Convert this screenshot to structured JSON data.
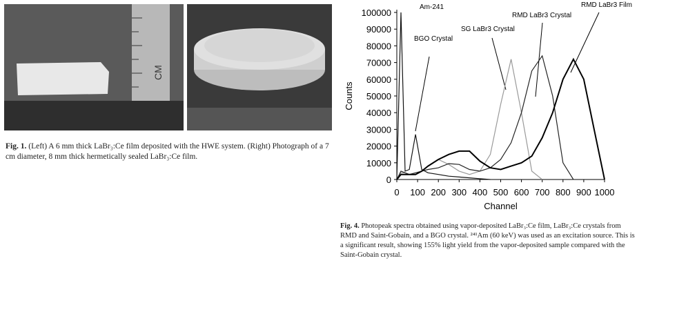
{
  "figure1": {
    "label": "Fig. 1.",
    "caption": "(Left) A 6 mm thick LaBr₃:Ce film deposited with the HWE system. (Right) Photograph of a 7 cm diameter, 8 mm thick hermetically sealed LaBr₃:Ce film."
  },
  "figure4": {
    "label": "Fig. 4.",
    "caption": "Photopeak spectra obtained using vapor-deposited LaBr₃:Ce film, LaBr₃:Ce crystals from RMD and Saint-Gobain, and a BGO crystal. ²⁴¹Am (60 keV) was used as an excitation source. This is a significant result, showing 155% light yield from the vapor-deposited sample compared with the Saint-Gobain crystal."
  },
  "chart_data": {
    "type": "line",
    "x_label": "Channel",
    "y_label": "Counts",
    "annotation": "Am-241",
    "x": [
      0,
      20,
      40,
      60,
      90,
      120,
      150,
      200,
      250,
      300,
      350,
      400,
      450,
      500,
      550,
      600,
      650,
      700,
      750,
      800,
      850,
      900,
      950,
      1000
    ],
    "series": [
      {
        "name": "BGO Crystal",
        "color": "#111111",
        "values": [
          0,
          100000,
          5000,
          6000,
          27000,
          6000,
          4000,
          3000,
          2000,
          1500,
          1000,
          500,
          0,
          null,
          null,
          null,
          null,
          null,
          null,
          null,
          null,
          null,
          null,
          null
        ]
      },
      {
        "name": "SG LaBr3 Crystal",
        "color": "#999999",
        "values": [
          0,
          4000,
          4000,
          3000,
          3000,
          5000,
          8000,
          12000,
          9000,
          5000,
          3000,
          5000,
          15000,
          45000,
          72000,
          40000,
          5000,
          0,
          null,
          null,
          null,
          null,
          null,
          null
        ]
      },
      {
        "name": "RMD LaBr3 Crystal",
        "color": "#222222",
        "values": [
          0,
          5000,
          4000,
          3000,
          4000,
          5000,
          6000,
          7000,
          9500,
          9000,
          6000,
          5000,
          7000,
          12000,
          22000,
          40000,
          65000,
          74000,
          50000,
          10000,
          0,
          null,
          null,
          null
        ]
      },
      {
        "name": "RMD LaBr3 Film",
        "color": "#000000",
        "values": [
          0,
          3000,
          3000,
          3000,
          3000,
          5000,
          8000,
          12000,
          15000,
          17000,
          17000,
          11000,
          7000,
          6000,
          8000,
          10000,
          14000,
          25000,
          40000,
          60000,
          72000,
          60000,
          30000,
          0
        ]
      }
    ],
    "xlim": [
      0,
      1000
    ],
    "xticks": [
      0,
      100,
      200,
      300,
      400,
      500,
      600,
      700,
      800,
      900,
      1000
    ],
    "ylim": [
      0,
      100000
    ],
    "yticks": [
      0,
      10000,
      20000,
      30000,
      40000,
      50000,
      60000,
      70000,
      80000,
      90000,
      100000
    ]
  }
}
